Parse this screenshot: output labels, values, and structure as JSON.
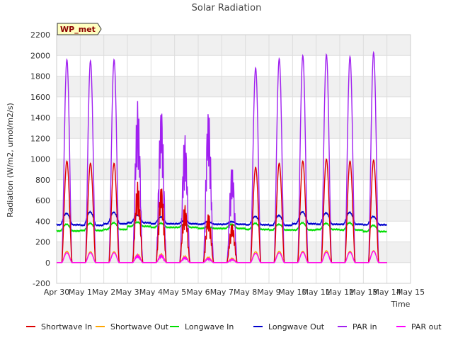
{
  "chart_data": {
    "type": "line",
    "title": "Solar Radiation",
    "xlabel": "Time",
    "ylabel": "Radiation (W/m2, umol/m2/s)",
    "station_label": "WP_met",
    "xlim": [
      0,
      15
    ],
    "ylim": [
      -200,
      2200
    ],
    "x_ticks": [
      {
        "pos": 0,
        "label": "Apr 30"
      },
      {
        "pos": 1,
        "label": "May 1"
      },
      {
        "pos": 2,
        "label": "May 2"
      },
      {
        "pos": 3,
        "label": "May 3"
      },
      {
        "pos": 4,
        "label": "May 4"
      },
      {
        "pos": 5,
        "label": "May 5"
      },
      {
        "pos": 6,
        "label": "May 6"
      },
      {
        "pos": 7,
        "label": "May 7"
      },
      {
        "pos": 8,
        "label": "May 8"
      },
      {
        "pos": 9,
        "label": "May 9"
      },
      {
        "pos": 10,
        "label": "May 10"
      },
      {
        "pos": 11,
        "label": "May 11"
      },
      {
        "pos": 12,
        "label": "May 12"
      },
      {
        "pos": 13,
        "label": "May 13"
      },
      {
        "pos": 14,
        "label": "May 14"
      },
      {
        "pos": 15,
        "label": "May 15"
      }
    ],
    "y_ticks": [
      -200,
      0,
      200,
      400,
      600,
      800,
      1000,
      1200,
      1400,
      1600,
      1800,
      2000,
      2200
    ],
    "grid": true,
    "legend_position": "bottom",
    "series": [
      {
        "name": "Shortwave In",
        "color": "#dd0000",
        "daily_peak": [
          980,
          960,
          960,
          780,
          740,
          560,
          480,
          380,
          920,
          960,
          980,
          1000,
          980,
          990
        ],
        "daily_night": [
          0,
          0,
          0,
          0,
          0,
          0,
          0,
          0,
          0,
          0,
          0,
          0,
          0,
          0
        ]
      },
      {
        "name": "Shortwave Out",
        "color": "#ffa500",
        "daily_peak": [
          110,
          105,
          105,
          85,
          85,
          65,
          55,
          45,
          105,
          110,
          110,
          115,
          110,
          115
        ],
        "daily_night": [
          0,
          0,
          0,
          0,
          0,
          0,
          0,
          0,
          0,
          0,
          0,
          0,
          0,
          0
        ]
      },
      {
        "name": "Longwave In",
        "color": "#00dd00",
        "daily_peak": [
          370,
          380,
          385,
          390,
          380,
          370,
          345,
          370,
          380,
          370,
          385,
          380,
          385,
          360
        ],
        "daily_night": [
          305,
          310,
          320,
          350,
          340,
          340,
          330,
          330,
          320,
          315,
          315,
          320,
          315,
          300
        ]
      },
      {
        "name": "Longwave Out",
        "color": "#0000cc",
        "daily_peak": [
          475,
          490,
          485,
          460,
          440,
          405,
          395,
          395,
          445,
          455,
          490,
          480,
          485,
          445
        ],
        "daily_night": [
          365,
          360,
          375,
          385,
          375,
          375,
          370,
          370,
          365,
          360,
          375,
          370,
          370,
          365
        ]
      },
      {
        "name": "PAR in",
        "color": "#a020f0",
        "daily_peak": [
          1960,
          1950,
          1960,
          1560,
          1490,
          1240,
          1480,
          940,
          1880,
          1970,
          2000,
          2010,
          1990,
          2030
        ],
        "daily_night": [
          0,
          0,
          0,
          0,
          0,
          0,
          0,
          0,
          0,
          0,
          0,
          0,
          0,
          0
        ]
      },
      {
        "name": "PAR out",
        "color": "#ff00ff",
        "daily_peak": [
          95,
          95,
          95,
          75,
          75,
          55,
          45,
          35,
          90,
          95,
          100,
          100,
          100,
          110
        ],
        "daily_night": [
          0,
          0,
          0,
          0,
          0,
          0,
          0,
          0,
          0,
          0,
          0,
          0,
          0,
          0
        ]
      }
    ]
  }
}
